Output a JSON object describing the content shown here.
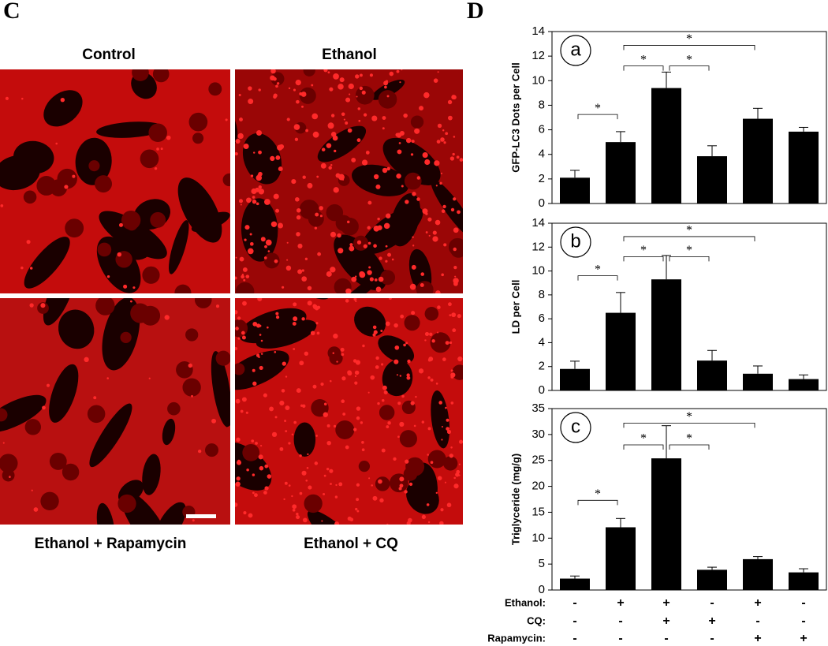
{
  "figure": {
    "panel_c": "C",
    "panel_d": "D"
  },
  "images": [
    {
      "label": "Control"
    },
    {
      "label": "Ethanol"
    },
    {
      "label": "Ethanol + Rapamycin"
    },
    {
      "label": "Ethanol + CQ"
    }
  ],
  "chart_data": [
    {
      "type": "bar",
      "panel_label": "a",
      "y_label": "GFP-LC3 Dots per Cell",
      "color": "#000000",
      "values": [
        2.1,
        5.0,
        9.4,
        3.85,
        6.9,
        5.85
      ],
      "errors": [
        0.6,
        0.85,
        1.3,
        0.85,
        0.85,
        0.35
      ],
      "ylim": [
        0,
        14
      ],
      "yticks": [
        0,
        2,
        4,
        6,
        8,
        10,
        12,
        14
      ],
      "significance": [
        {
          "label": "*",
          "pair": [
            0,
            1
          ]
        },
        {
          "label": "*",
          "pair": [
            1,
            2
          ]
        },
        {
          "label": "*",
          "pair": [
            2,
            3
          ]
        },
        {
          "label": "*",
          "pair": [
            1,
            4
          ]
        }
      ]
    },
    {
      "type": "bar",
      "panel_label": "b",
      "y_label": "LD per Cell",
      "color": "#000000",
      "values": [
        1.8,
        6.5,
        9.3,
        2.5,
        1.4,
        0.95
      ],
      "errors": [
        0.65,
        1.7,
        2.0,
        0.85,
        0.65,
        0.35
      ],
      "ylim": [
        0,
        14
      ],
      "yticks": [
        0,
        2,
        4,
        6,
        8,
        10,
        12,
        14
      ],
      "significance": [
        {
          "label": "*",
          "pair": [
            0,
            1
          ]
        },
        {
          "label": "*",
          "pair": [
            1,
            2
          ]
        },
        {
          "label": "*",
          "pair": [
            2,
            3
          ]
        },
        {
          "label": "*",
          "pair": [
            1,
            4
          ]
        }
      ]
    },
    {
      "type": "bar",
      "panel_label": "c",
      "y_label": "Triglyceride (mg/g)",
      "color": "#000000",
      "values": [
        2.2,
        12.1,
        25.4,
        3.9,
        5.95,
        3.4
      ],
      "errors": [
        0.5,
        1.7,
        6.3,
        0.5,
        0.5,
        0.7
      ],
      "ylim": [
        0,
        35
      ],
      "yticks": [
        0,
        5,
        10,
        15,
        20,
        25,
        30,
        35
      ],
      "significance": [
        {
          "label": "*",
          "pair": [
            0,
            1
          ]
        },
        {
          "label": "*",
          "pair": [
            1,
            2
          ]
        },
        {
          "label": "*",
          "pair": [
            2,
            3
          ]
        },
        {
          "label": "*",
          "pair": [
            1,
            4
          ]
        }
      ]
    }
  ],
  "treatments": {
    "rows": [
      {
        "label": "Ethanol:",
        "signs": [
          "-",
          "+",
          "+",
          "-",
          "+",
          "-"
        ]
      },
      {
        "label": "CQ:",
        "signs": [
          "-",
          "-",
          "+",
          "+",
          "-",
          "-"
        ]
      },
      {
        "label": "Rapamycin:",
        "signs": [
          "-",
          "-",
          "-",
          "-",
          "+",
          "+"
        ]
      }
    ]
  }
}
